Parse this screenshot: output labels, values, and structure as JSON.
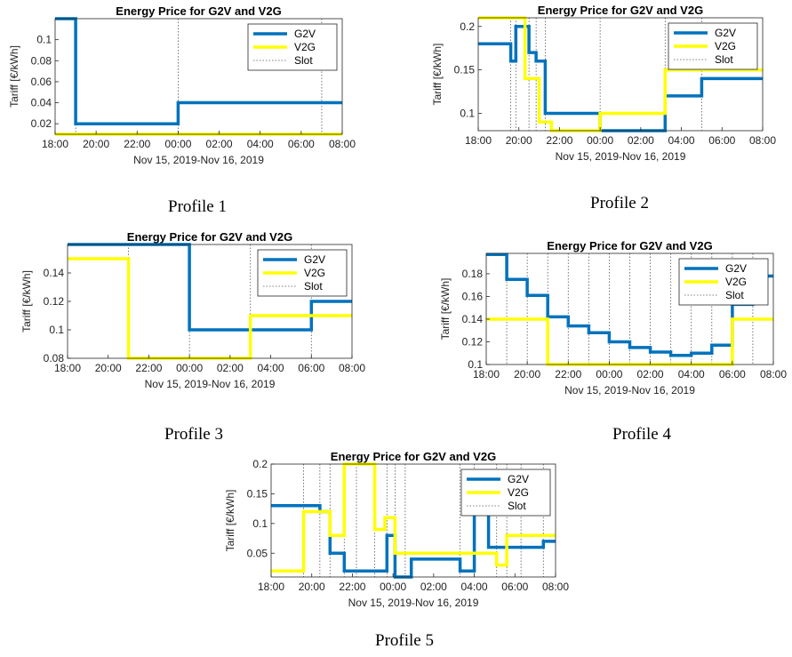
{
  "colors": {
    "g2v": "#0072BD",
    "v2g": "#FFFF00",
    "slot": "#555555",
    "axis": "#262626"
  },
  "chart_data": [
    {
      "type": "line",
      "caption": "Profile 1",
      "title": "Energy Price for G2V and V2G",
      "xlabel": "Nov 15, 2019-Nov 16, 2019",
      "ylabel": "Tariff [€/kWh]",
      "x_domain_hours": [
        18,
        32
      ],
      "ylim": [
        0.01,
        0.12
      ],
      "xticks": [
        "18:00",
        "20:00",
        "22:00",
        "00:00",
        "02:00",
        "04:00",
        "06:00",
        "08:00"
      ],
      "yticks": [
        0.02,
        0.04,
        0.06,
        0.08,
        0.1
      ],
      "slots": [
        19,
        24,
        31
      ],
      "series": [
        {
          "name": "G2V",
          "points": [
            [
              18,
              0.12
            ],
            [
              19,
              0.12
            ],
            [
              19,
              0.02
            ],
            [
              24,
              0.02
            ],
            [
              24,
              0.04
            ],
            [
              32,
              0.04
            ]
          ]
        },
        {
          "name": "V2G",
          "points": [
            [
              18,
              0.01
            ],
            [
              32,
              0.01
            ]
          ]
        },
        {
          "name": "Slot"
        }
      ],
      "legend": "top-right"
    },
    {
      "type": "line",
      "caption": "Profile 2",
      "title": "Energy Price for G2V and V2G",
      "xlabel": "Nov 15, 2019-Nov 16, 2019",
      "ylabel": "Tariff [€/kWh]",
      "x_domain_hours": [
        18,
        32
      ],
      "ylim": [
        0.08,
        0.21
      ],
      "xticks": [
        "18:00",
        "20:00",
        "22:00",
        "00:00",
        "02:00",
        "04:00",
        "06:00",
        "08:00"
      ],
      "yticks": [
        0.1,
        0.15,
        0.2
      ],
      "slots": [
        19.6,
        19.85,
        20.5,
        20.85,
        21.3,
        24,
        27.2,
        29
      ],
      "series": [
        {
          "name": "G2V",
          "points": [
            [
              18,
              0.18
            ],
            [
              19.6,
              0.18
            ],
            [
              19.6,
              0.16
            ],
            [
              19.85,
              0.16
            ],
            [
              19.85,
              0.2
            ],
            [
              20.5,
              0.2
            ],
            [
              20.5,
              0.17
            ],
            [
              20.85,
              0.17
            ],
            [
              20.85,
              0.16
            ],
            [
              21.3,
              0.16
            ],
            [
              21.3,
              0.1
            ],
            [
              24,
              0.1
            ],
            [
              24,
              0.08
            ],
            [
              27.2,
              0.08
            ],
            [
              27.2,
              0.12
            ],
            [
              29,
              0.12
            ],
            [
              29,
              0.14
            ],
            [
              32,
              0.14
            ]
          ]
        },
        {
          "name": "V2G",
          "points": [
            [
              18,
              0.21
            ],
            [
              20.3,
              0.21
            ],
            [
              20.3,
              0.14
            ],
            [
              21.0,
              0.14
            ],
            [
              21.0,
              0.09
            ],
            [
              21.6,
              0.09
            ],
            [
              21.6,
              0.08
            ],
            [
              24,
              0.08
            ],
            [
              24,
              0.1
            ],
            [
              27.2,
              0.1
            ],
            [
              27.2,
              0.15
            ],
            [
              32,
              0.15
            ]
          ]
        },
        {
          "name": "Slot"
        }
      ],
      "legend": "top-right"
    },
    {
      "type": "line",
      "caption": "Profile 3",
      "title": "Energy Price for G2V and V2G",
      "xlabel": "Nov 15, 2019-Nov 16, 2019",
      "ylabel": "Tariff [€/kWh]",
      "x_domain_hours": [
        18,
        32
      ],
      "ylim": [
        0.08,
        0.16
      ],
      "xticks": [
        "18:00",
        "20:00",
        "22:00",
        "00:00",
        "02:00",
        "04:00",
        "06:00",
        "08:00"
      ],
      "yticks": [
        0.08,
        0.1,
        0.12,
        0.14
      ],
      "slots": [
        21,
        24,
        27,
        30
      ],
      "series": [
        {
          "name": "G2V",
          "points": [
            [
              18,
              0.16
            ],
            [
              24,
              0.16
            ],
            [
              24,
              0.1
            ],
            [
              30,
              0.1
            ],
            [
              30,
              0.12
            ],
            [
              32,
              0.12
            ]
          ]
        },
        {
          "name": "V2G",
          "points": [
            [
              18,
              0.15
            ],
            [
              21,
              0.15
            ],
            [
              21,
              0.08
            ],
            [
              27,
              0.08
            ],
            [
              27,
              0.11
            ],
            [
              32,
              0.11
            ]
          ]
        },
        {
          "name": "Slot"
        }
      ],
      "legend": "top-right"
    },
    {
      "type": "line",
      "caption": "Profile 4",
      "title": "Energy Price for G2V and V2G",
      "xlabel": "Nov 15, 2019-Nov 16, 2019",
      "ylabel": "Tariff [€/kWh]",
      "x_domain_hours": [
        18,
        32
      ],
      "ylim": [
        0.1,
        0.198
      ],
      "xticks": [
        "18:00",
        "20:00",
        "22:00",
        "00:00",
        "02:00",
        "04:00",
        "06:00",
        "08:00"
      ],
      "yticks": [
        0.1,
        0.12,
        0.14,
        0.16,
        0.18
      ],
      "slots": [
        19,
        20,
        21,
        22,
        23,
        24,
        25,
        26,
        27,
        28,
        29,
        30,
        31
      ],
      "series": [
        {
          "name": "G2V",
          "points": [
            [
              18,
              0.197
            ],
            [
              19,
              0.197
            ],
            [
              19,
              0.175
            ],
            [
              20,
              0.175
            ],
            [
              20,
              0.161
            ],
            [
              21,
              0.161
            ],
            [
              21,
              0.142
            ],
            [
              22,
              0.142
            ],
            [
              22,
              0.134
            ],
            [
              23,
              0.134
            ],
            [
              23,
              0.128
            ],
            [
              24,
              0.128
            ],
            [
              24,
              0.12
            ],
            [
              25,
              0.12
            ],
            [
              25,
              0.115
            ],
            [
              26,
              0.115
            ],
            [
              26,
              0.111
            ],
            [
              27,
              0.111
            ],
            [
              27,
              0.108
            ],
            [
              28,
              0.108
            ],
            [
              28,
              0.11
            ],
            [
              29,
              0.11
            ],
            [
              29,
              0.117
            ],
            [
              30,
              0.117
            ],
            [
              30,
              0.153
            ],
            [
              31,
              0.153
            ],
            [
              31,
              0.178
            ],
            [
              32,
              0.178
            ]
          ]
        },
        {
          "name": "V2G",
          "points": [
            [
              18,
              0.14
            ],
            [
              21,
              0.14
            ],
            [
              21,
              0.1
            ],
            [
              30,
              0.1
            ],
            [
              30,
              0.14
            ],
            [
              32,
              0.14
            ]
          ]
        },
        {
          "name": "Slot"
        }
      ],
      "legend": "top-right"
    },
    {
      "type": "line",
      "caption": "Profile 5",
      "title": "Energy Price for G2V and V2G",
      "xlabel": "Nov 15, 2019-Nov 16, 2019",
      "ylabel": "Tariff [€/kWh]",
      "x_domain_hours": [
        18,
        32
      ],
      "ylim": [
        0.01,
        0.2
      ],
      "xticks": [
        "18:00",
        "20:00",
        "22:00",
        "00:00",
        "02:00",
        "04:00",
        "06:00",
        "08:00"
      ],
      "yticks": [
        0.05,
        0.1,
        0.15,
        0.2
      ],
      "slots": [
        19.6,
        20.4,
        20.9,
        21.6,
        22.2,
        23.1,
        23.7,
        24.1,
        24.6,
        27.3,
        28.0,
        29.1,
        29.6,
        30.3,
        31.4
      ],
      "series": [
        {
          "name": "G2V",
          "points": [
            [
              18,
              0.13
            ],
            [
              20.4,
              0.13
            ],
            [
              20.4,
              0.12
            ],
            [
              20.9,
              0.12
            ],
            [
              20.9,
              0.05
            ],
            [
              21.6,
              0.05
            ],
            [
              21.6,
              0.02
            ],
            [
              23.7,
              0.02
            ],
            [
              23.7,
              0.08
            ],
            [
              24.1,
              0.08
            ],
            [
              24.1,
              0.01
            ],
            [
              24.9,
              0.01
            ],
            [
              24.9,
              0.04
            ],
            [
              27.3,
              0.04
            ],
            [
              27.3,
              0.02
            ],
            [
              28.0,
              0.02
            ],
            [
              28.0,
              0.13
            ],
            [
              28.7,
              0.13
            ],
            [
              28.7,
              0.06
            ],
            [
              31.4,
              0.06
            ],
            [
              31.4,
              0.07
            ],
            [
              32,
              0.07
            ]
          ]
        },
        {
          "name": "V2G",
          "points": [
            [
              18,
              0.02
            ],
            [
              19.6,
              0.02
            ],
            [
              19.6,
              0.12
            ],
            [
              20.9,
              0.12
            ],
            [
              20.9,
              0.08
            ],
            [
              21.6,
              0.08
            ],
            [
              21.6,
              0.2
            ],
            [
              23.1,
              0.2
            ],
            [
              23.1,
              0.09
            ],
            [
              23.6,
              0.09
            ],
            [
              23.6,
              0.11
            ],
            [
              24.1,
              0.11
            ],
            [
              24.1,
              0.05
            ],
            [
              29.1,
              0.05
            ],
            [
              29.1,
              0.03
            ],
            [
              29.6,
              0.03
            ],
            [
              29.6,
              0.08
            ],
            [
              32,
              0.08
            ]
          ]
        },
        {
          "name": "Slot"
        }
      ],
      "legend": "top-right"
    }
  ]
}
